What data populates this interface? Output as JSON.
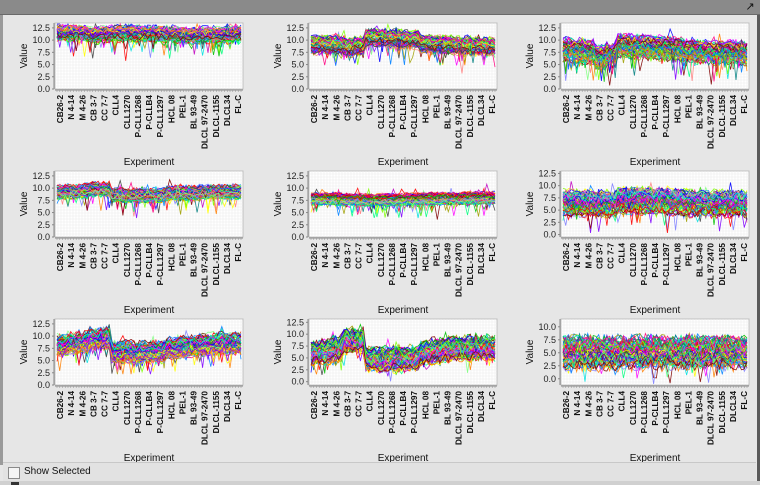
{
  "window": {
    "expand_icon": "expand-arrow-icon",
    "show_selected_label": "Show Selected",
    "show_selected_checked": false
  },
  "chart_data": [
    {
      "type": "line",
      "xlabel": "Experiment",
      "ylabel": "Value",
      "yticks": [
        "0.0",
        "2.5",
        "5.0",
        "7.5",
        "10.0",
        "12.5"
      ],
      "ylim": [
        0,
        13.5
      ],
      "categories": [
        "CB26-2",
        "N 4-14",
        "M 4-26",
        "CB 3-7",
        "CC 7-7",
        "CLL4",
        "CLL1270",
        "P-CLL1268",
        "P-CLLB4",
        "P-CLL1297",
        "HCL 08",
        "PEL-1",
        "BL 93-49",
        "DLCL 97-2470",
        "DLCL-1155",
        "DLCL34",
        "FL-C"
      ],
      "profile": {
        "means": [
          11.5,
          11.5,
          11.3,
          11,
          11.2,
          11.4,
          11.3,
          11.2,
          11.3,
          11.2,
          11.2,
          11,
          10.8,
          11,
          11,
          11,
          11.2
        ],
        "spread": 1.4,
        "dip_depth": 4,
        "min": 4.5,
        "max": 13.3
      },
      "grid": true,
      "legend": "none"
    },
    {
      "type": "line",
      "xlabel": "Experiment",
      "ylabel": "Value",
      "yticks": [
        "0.0",
        "2.5",
        "5.0",
        "7.5",
        "10.0",
        "12.5"
      ],
      "ylim": [
        0,
        13.5
      ],
      "categories": [
        "CB26-2",
        "N 4-14",
        "M 4-26",
        "CB 3-7",
        "CC 7-7",
        "CLL4",
        "CLL1270",
        "P-CLL1268",
        "P-CLLB4",
        "P-CLL1297",
        "HCL 08",
        "PEL-1",
        "BL 93-49",
        "DLCL 97-2470",
        "DLCL-1155",
        "DLCL34",
        "FL-C"
      ],
      "profile": {
        "means": [
          9,
          9,
          9,
          8.5,
          8.8,
          10.5,
          10.4,
          10.3,
          10.2,
          10.1,
          9.2,
          9,
          9,
          8.8,
          8.8,
          8.8,
          8.7
        ],
        "spread": 1.5,
        "dip_depth": 4,
        "min": 2.8,
        "max": 13.2
      },
      "grid": true,
      "legend": "none"
    },
    {
      "type": "line",
      "xlabel": "Experiment",
      "ylabel": "Value",
      "yticks": [
        "0.0",
        "2.5",
        "5.0",
        "7.5",
        "10.0",
        "12.5"
      ],
      "ylim": [
        0,
        13.5
      ],
      "categories": [
        "CB26-2",
        "N 4-14",
        "M 4-26",
        "CB 3-7",
        "CC 7-7",
        "CLL4",
        "CLL1270",
        "P-CLL1268",
        "P-CLLB4",
        "P-CLL1297",
        "HCL 08",
        "PEL-1",
        "BL 93-49",
        "DLCL 97-2470",
        "DLCL-1155",
        "DLCL34",
        "FL-C"
      ],
      "profile": {
        "means": [
          8,
          7.8,
          7.6,
          6.5,
          7,
          8.8,
          8.7,
          8.6,
          8.5,
          8.4,
          8.2,
          7.8,
          7.6,
          7.5,
          7.4,
          7.5,
          7.3
        ],
        "spread": 2.0,
        "dip_depth": 5,
        "min": 0.5,
        "max": 13
      },
      "grid": true,
      "legend": "none"
    },
    {
      "type": "line",
      "xlabel": "Experiment",
      "ylabel": "Value",
      "yticks": [
        "0.0",
        "2.5",
        "5.0",
        "7.5",
        "10.0",
        "12.5"
      ],
      "ylim": [
        0,
        13.5
      ],
      "categories": [
        "CB26-2",
        "N 4-14",
        "M 4-26",
        "CB 3-7",
        "CC 7-7",
        "CLL4",
        "CLL1270",
        "P-CLL1268",
        "P-CLLB4",
        "P-CLL1297",
        "HCL 08",
        "PEL-1",
        "BL 93-49",
        "DLCL 97-2470",
        "DLCL-1155",
        "DLCL34",
        "FL-C"
      ],
      "profile": {
        "means": [
          9.2,
          9.3,
          9.4,
          9.8,
          9.8,
          8.6,
          8.5,
          8.5,
          8.5,
          8.6,
          9,
          9,
          9,
          9.3,
          9.3,
          9.3,
          9.3
        ],
        "spread": 1.2,
        "dip_depth": 4,
        "min": 1.6,
        "max": 12.5
      },
      "grid": true,
      "legend": "none"
    },
    {
      "type": "line",
      "xlabel": "Experiment",
      "ylabel": "Value",
      "yticks": [
        "0.0",
        "2.5",
        "5.0",
        "7.5",
        "10.0",
        "12.5"
      ],
      "ylim": [
        0,
        13.5
      ],
      "categories": [
        "CB26-2",
        "N 4-14",
        "M 4-26",
        "CB 3-7",
        "CC 7-7",
        "CLL4",
        "CLL1270",
        "P-CLL1268",
        "P-CLLB4",
        "P-CLL1297",
        "HCL 08",
        "PEL-1",
        "BL 93-49",
        "DLCL 97-2470",
        "DLCL-1155",
        "DLCL34",
        "FL-C"
      ],
      "profile": {
        "means": [
          7.8,
          7.8,
          7.8,
          7.7,
          7.7,
          7.6,
          7.6,
          7.6,
          7.7,
          7.7,
          7.8,
          7.8,
          7.9,
          7.9,
          8,
          8,
          8
        ],
        "spread": 1.0,
        "dip_depth": 3,
        "min": 3.5,
        "max": 12.8
      },
      "grid": true,
      "legend": "none"
    },
    {
      "type": "line",
      "xlabel": "Experiment",
      "ylabel": "Value",
      "yticks": [
        "0.0",
        "2.5",
        "5.0",
        "7.5",
        "10.0",
        "12.5"
      ],
      "ylim": [
        -0.5,
        13
      ],
      "categories": [
        "CB26-2",
        "N 4-14",
        "M 4-26",
        "CB 3-7",
        "CC 7-7",
        "CLL4",
        "CLL1270",
        "P-CLL1268",
        "P-CLLB4",
        "P-CLL1297",
        "HCL 08",
        "PEL-1",
        "BL 93-49",
        "DLCL 97-2470",
        "DLCL-1155",
        "DLCL34",
        "FL-C"
      ],
      "profile": {
        "means": [
          6.5,
          6.5,
          6.3,
          6.2,
          6.3,
          7,
          7,
          7,
          7,
          6.8,
          6.8,
          6.5,
          6.5,
          6.4,
          6.4,
          6.4,
          6.4
        ],
        "spread": 2.2,
        "dip_depth": 4,
        "min": -0.2,
        "max": 12.5
      },
      "grid": true,
      "legend": "none"
    },
    {
      "type": "line",
      "xlabel": "Experiment",
      "ylabel": "Value",
      "yticks": [
        "0.0",
        "2.5",
        "5.0",
        "7.5",
        "10.0",
        "12.5"
      ],
      "ylim": [
        0,
        13.5
      ],
      "categories": [
        "CB26-2",
        "N 4-14",
        "M 4-26",
        "CB 3-7",
        "CC 7-7",
        "CLL4",
        "CLL1270",
        "P-CLL1268",
        "P-CLLB4",
        "P-CLL1297",
        "HCL 08",
        "PEL-1",
        "BL 93-49",
        "DLCL 97-2470",
        "DLCL-1155",
        "DLCL34",
        "FL-C"
      ],
      "profile": {
        "means": [
          8.2,
          8.5,
          8.8,
          9.5,
          9.6,
          6.8,
          6.8,
          6.7,
          6.8,
          6.8,
          7.5,
          7.8,
          8,
          8.3,
          8.4,
          8.5,
          8.5
        ],
        "spread": 1.8,
        "dip_depth": 4,
        "min": 2.2,
        "max": 12.4
      },
      "grid": true,
      "legend": "none"
    },
    {
      "type": "line",
      "xlabel": "Experiment",
      "ylabel": "Value",
      "yticks": [
        "0.0",
        "2.5",
        "5.0",
        "7.5",
        "10.0",
        "12.5"
      ],
      "ylim": [
        -0.7,
        13.2
      ],
      "categories": [
        "CB26-2",
        "N 4-14",
        "M 4-26",
        "CB 3-7",
        "CC 7-7",
        "CLL4",
        "CLL1270",
        "P-CLL1268",
        "P-CLLB4",
        "P-CLL1297",
        "HCL 08",
        "PEL-1",
        "BL 93-49",
        "DLCL 97-2470",
        "DLCL-1155",
        "DLCL34",
        "FL-C"
      ],
      "profile": {
        "means": [
          6.2,
          6.5,
          7,
          8.8,
          8.8,
          4.8,
          4.8,
          4.9,
          5,
          5,
          6.2,
          6.5,
          6.8,
          7,
          7,
          7.2,
          7.2
        ],
        "spread": 2.2,
        "dip_depth": 4,
        "min": -0.4,
        "max": 12.5
      },
      "grid": true,
      "legend": "none"
    },
    {
      "type": "line",
      "xlabel": "Experiment",
      "ylabel": "Value",
      "yticks": [
        "0.0",
        "2.5",
        "5.0",
        "7.5",
        "10.0"
      ],
      "ylim": [
        -1.2,
        11.5
      ],
      "categories": [
        "CB26-2",
        "N 4-14",
        "M 4-26",
        "CB 3-7",
        "CC 7-7",
        "CLL4",
        "CLL1270",
        "P-CLL1268",
        "P-CLLB4",
        "P-CLL1297",
        "HCL 08",
        "PEL-1",
        "BL 93-49",
        "DLCL 97-2470",
        "DLCL-1155",
        "DLCL34",
        "FL-C"
      ],
      "profile": {
        "means": [
          5,
          5,
          5,
          4.9,
          4.9,
          5,
          5,
          5,
          5,
          5,
          5.1,
          5.1,
          5,
          5,
          5,
          5,
          5
        ],
        "spread": 2.6,
        "dip_depth": 3,
        "min": -1,
        "max": 11.3
      },
      "grid": true,
      "legend": "none"
    }
  ]
}
